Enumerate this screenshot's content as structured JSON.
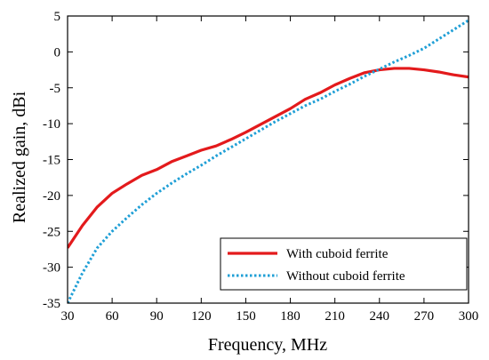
{
  "chart_data": {
    "type": "line",
    "xlabel": "Frequency, MHz",
    "ylabel": "Realized gain, dBi",
    "xlim": [
      30,
      300
    ],
    "ylim": [
      -35,
      5
    ],
    "xticks": [
      "30",
      "60",
      "90",
      "120",
      "150",
      "180",
      "210",
      "240",
      "270",
      "300"
    ],
    "yticks": [
      "5",
      "0",
      "-5",
      "-10",
      "-15",
      "-20",
      "-25",
      "-30",
      "-35"
    ],
    "grid": false,
    "legend_position": "bottom-right",
    "series": [
      {
        "name": "With cuboid ferrite",
        "color": "#e31a1c",
        "style": "solid",
        "x": [
          30,
          40,
          50,
          60,
          70,
          80,
          90,
          100,
          110,
          120,
          130,
          140,
          150,
          160,
          170,
          180,
          190,
          200,
          210,
          220,
          230,
          240,
          250,
          260,
          270,
          280,
          290,
          300
        ],
        "y": [
          -27.3,
          -24.2,
          -21.6,
          -19.7,
          -18.4,
          -17.2,
          -16.4,
          -15.3,
          -14.5,
          -13.7,
          -13.1,
          -12.2,
          -11.2,
          -10.1,
          -9.0,
          -7.9,
          -6.6,
          -5.7,
          -4.6,
          -3.7,
          -2.9,
          -2.5,
          -2.3,
          -2.3,
          -2.5,
          -2.8,
          -3.2,
          -3.5
        ]
      },
      {
        "name": "Without cuboid ferrite",
        "color": "#1f9fd6",
        "style": "dotted",
        "x": [
          30,
          40,
          50,
          60,
          70,
          80,
          90,
          100,
          110,
          120,
          130,
          140,
          150,
          160,
          170,
          180,
          190,
          200,
          210,
          220,
          230,
          240,
          250,
          260,
          270,
          280,
          290,
          300
        ],
        "y": [
          -35.0,
          -30.8,
          -27.3,
          -25.0,
          -23.1,
          -21.3,
          -19.7,
          -18.3,
          -17.0,
          -15.8,
          -14.5,
          -13.3,
          -12.1,
          -10.9,
          -9.7,
          -8.6,
          -7.5,
          -6.6,
          -5.5,
          -4.5,
          -3.4,
          -2.4,
          -1.4,
          -0.5,
          0.5,
          1.8,
          3.1,
          4.4
        ]
      }
    ]
  }
}
